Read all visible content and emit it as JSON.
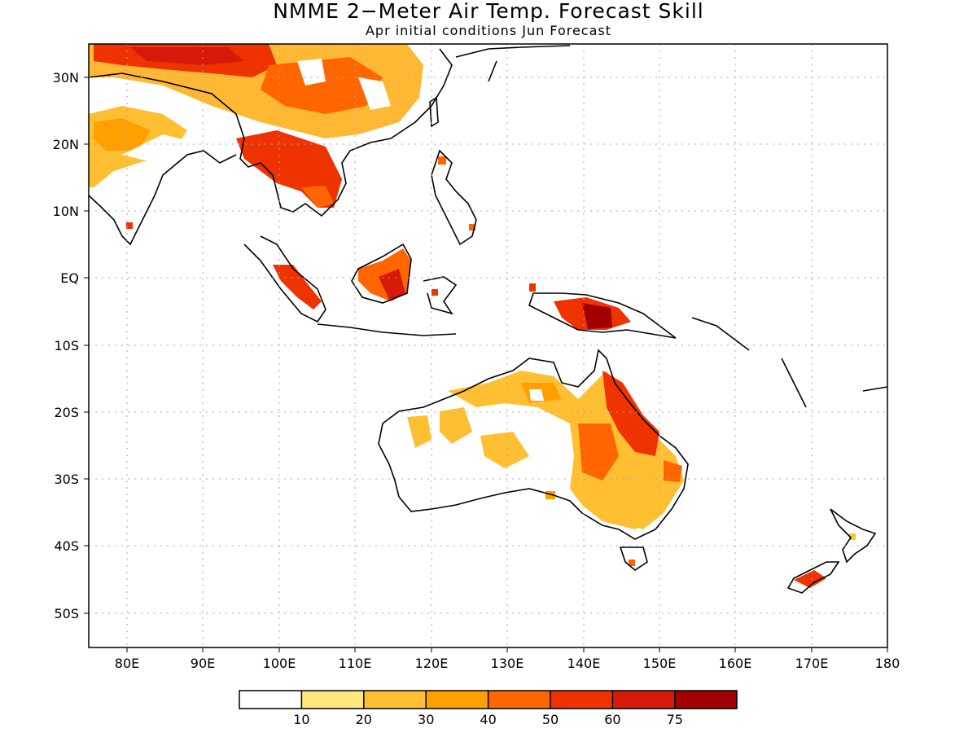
{
  "title": "NMME 2−Meter Air Temp. Forecast Skill",
  "subtitle": "Apr initial conditions  Jun Forecast",
  "x_ticks": [
    "80E",
    "90E",
    "100E",
    "110E",
    "120E",
    "130E",
    "140E",
    "150E",
    "160E",
    "170E",
    "180"
  ],
  "y_ticks": [
    "30N",
    "20N",
    "10N",
    "EQ",
    "10S",
    "20S",
    "30S",
    "40S",
    "50S"
  ],
  "map": {
    "lon_range": [
      75,
      180
    ],
    "lat_range": [
      -55,
      35
    ],
    "grid": true,
    "land_color": "#ffffff",
    "coast_color": "#000000"
  },
  "legend": {
    "labels": [
      "10",
      "20",
      "30",
      "40",
      "50",
      "60",
      "75"
    ],
    "colors": [
      "#ffffff",
      "#ffe680",
      "#ffbf33",
      "#ffa000",
      "#ff6600",
      "#ee3300",
      "#d61a0a",
      "#a00000"
    ]
  }
}
